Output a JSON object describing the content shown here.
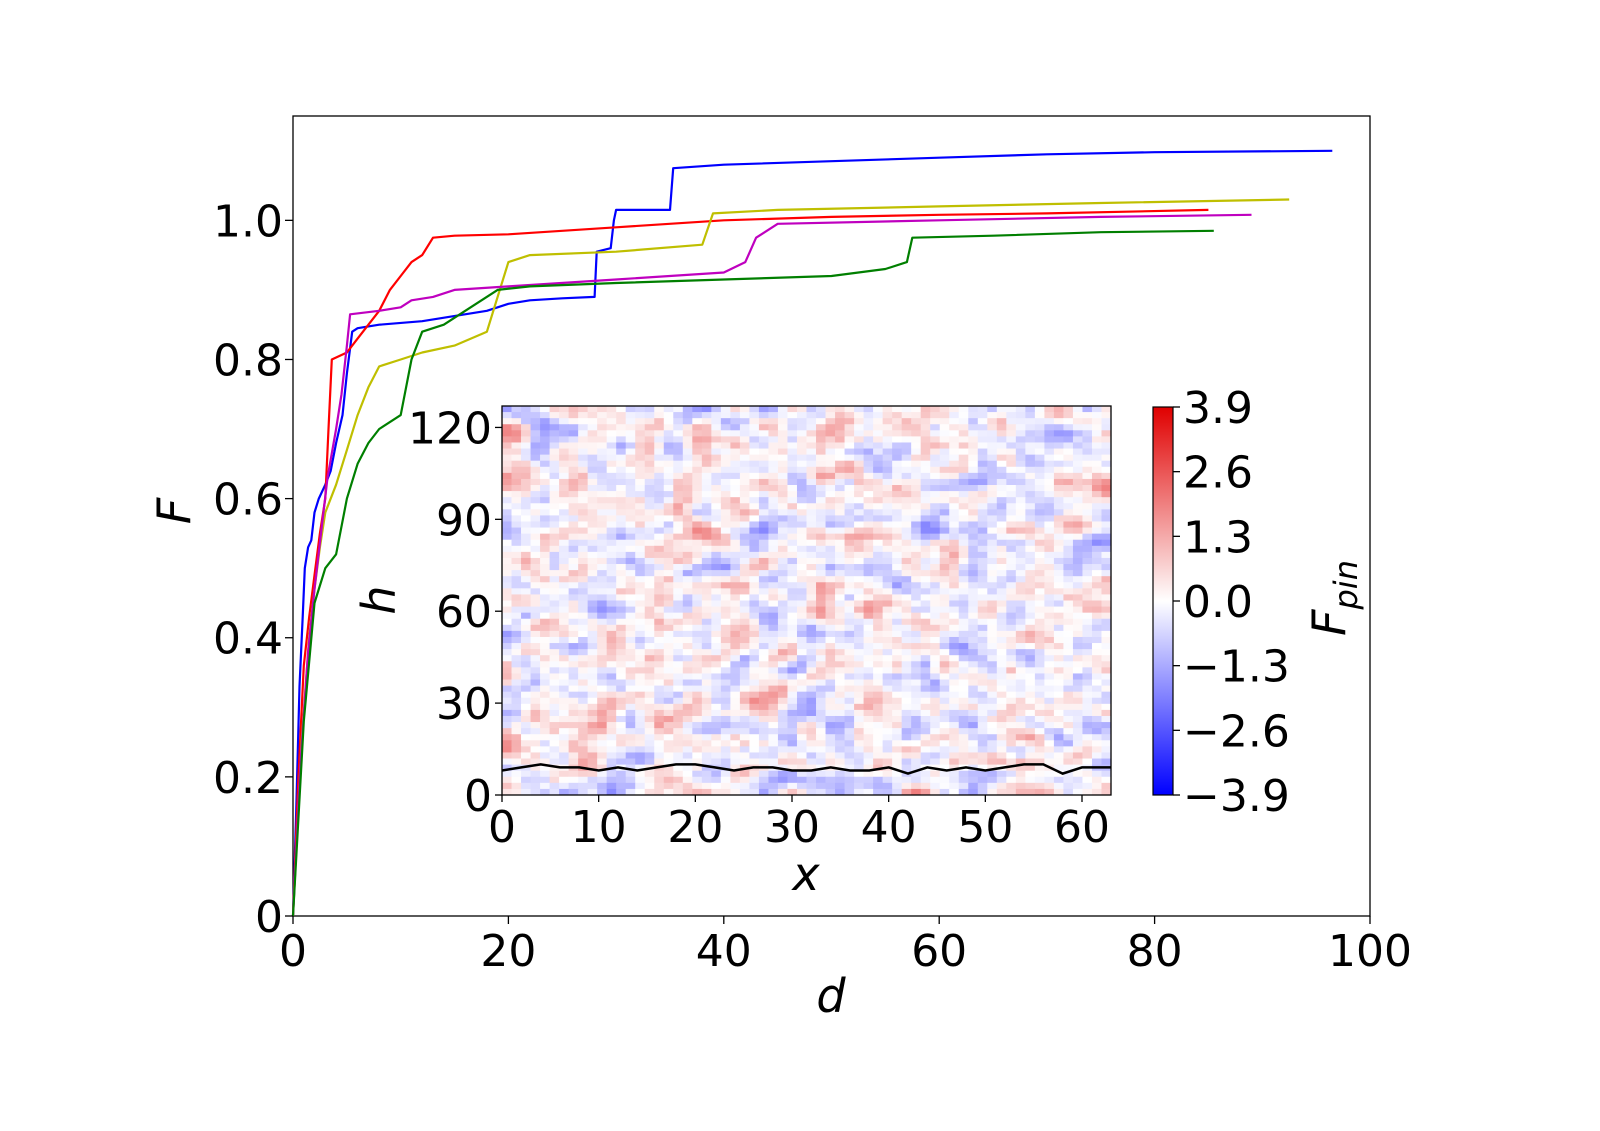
{
  "chart_data": [
    {
      "type": "line",
      "xlabel": "d",
      "ylabel": "F",
      "xlim": [
        0,
        100
      ],
      "ylim": [
        0,
        1.15
      ],
      "x_ticks": [
        "0",
        "20",
        "40",
        "60",
        "80",
        "100"
      ],
      "x_tick_values": [
        0,
        20,
        40,
        60,
        80,
        100
      ],
      "y_ticks": [
        "0",
        "0.2",
        "0.4",
        "0.6",
        "0.8",
        "1.0"
      ],
      "y_tick_values": [
        0,
        0.2,
        0.4,
        0.6,
        0.8,
        1.0
      ],
      "grid": false,
      "series": [
        {
          "color": "#0000ff",
          "points": [
            [
              0,
              0
            ],
            [
              0.3,
              0.15
            ],
            [
              0.6,
              0.33
            ],
            [
              0.9,
              0.43
            ],
            [
              1.1,
              0.5
            ],
            [
              1.4,
              0.53
            ],
            [
              1.7,
              0.54
            ],
            [
              2.0,
              0.58
            ],
            [
              2.4,
              0.6
            ],
            [
              3.0,
              0.62
            ],
            [
              3.5,
              0.64
            ],
            [
              4.0,
              0.68
            ],
            [
              4.6,
              0.72
            ],
            [
              5.0,
              0.78
            ],
            [
              5.5,
              0.84
            ],
            [
              6,
              0.845
            ],
            [
              8,
              0.85
            ],
            [
              12,
              0.855
            ],
            [
              18,
              0.87
            ],
            [
              20,
              0.88
            ],
            [
              22,
              0.885
            ],
            [
              25,
              0.888
            ],
            [
              28,
              0.89
            ],
            [
              28.2,
              0.955
            ],
            [
              29.5,
              0.96
            ],
            [
              29.8,
              1.0
            ],
            [
              30,
              1.015
            ],
            [
              35,
              1.015
            ],
            [
              35.3,
              1.075
            ],
            [
              40,
              1.08
            ],
            [
              50,
              1.085
            ],
            [
              60,
              1.09
            ],
            [
              70,
              1.095
            ],
            [
              80,
              1.098
            ],
            [
              96.5,
              1.1
            ]
          ]
        },
        {
          "color": "#ff0000",
          "points": [
            [
              0,
              0
            ],
            [
              0.5,
              0.2
            ],
            [
              1,
              0.36
            ],
            [
              1.5,
              0.43
            ],
            [
              2,
              0.49
            ],
            [
              2.5,
              0.55
            ],
            [
              3,
              0.6
            ],
            [
              3.3,
              0.7
            ],
            [
              3.6,
              0.8
            ],
            [
              5,
              0.81
            ],
            [
              6,
              0.83
            ],
            [
              7,
              0.85
            ],
            [
              8,
              0.87
            ],
            [
              9,
              0.9
            ],
            [
              10,
              0.92
            ],
            [
              11,
              0.94
            ],
            [
              12,
              0.95
            ],
            [
              13,
              0.975
            ],
            [
              15,
              0.978
            ],
            [
              20,
              0.98
            ],
            [
              30,
              0.99
            ],
            [
              40,
              1.0
            ],
            [
              50,
              1.005
            ],
            [
              60,
              1.008
            ],
            [
              70,
              1.01
            ],
            [
              85,
              1.015
            ]
          ]
        },
        {
          "color": "#bfbf00",
          "points": [
            [
              0,
              0
            ],
            [
              0.8,
              0.25
            ],
            [
              1.5,
              0.4
            ],
            [
              2,
              0.47
            ],
            [
              2.5,
              0.53
            ],
            [
              3,
              0.58
            ],
            [
              4,
              0.62
            ],
            [
              5,
              0.67
            ],
            [
              6,
              0.72
            ],
            [
              7,
              0.76
            ],
            [
              8,
              0.79
            ],
            [
              10,
              0.8
            ],
            [
              12,
              0.81
            ],
            [
              15,
              0.82
            ],
            [
              18,
              0.84
            ],
            [
              19,
              0.89
            ],
            [
              20,
              0.94
            ],
            [
              22,
              0.95
            ],
            [
              30,
              0.955
            ],
            [
              38,
              0.965
            ],
            [
              39,
              1.01
            ],
            [
              45,
              1.015
            ],
            [
              60,
              1.02
            ],
            [
              75,
              1.025
            ],
            [
              92.5,
              1.03
            ]
          ]
        },
        {
          "color": "#bf00bf",
          "points": [
            [
              0,
              0
            ],
            [
              0.7,
              0.22
            ],
            [
              1.4,
              0.38
            ],
            [
              2,
              0.47
            ],
            [
              2.6,
              0.55
            ],
            [
              3.2,
              0.63
            ],
            [
              4,
              0.7
            ],
            [
              4.5,
              0.75
            ],
            [
              5,
              0.82
            ],
            [
              5.3,
              0.865
            ],
            [
              8,
              0.87
            ],
            [
              10,
              0.875
            ],
            [
              11,
              0.885
            ],
            [
              13,
              0.89
            ],
            [
              15,
              0.9
            ],
            [
              20,
              0.905
            ],
            [
              30,
              0.915
            ],
            [
              40,
              0.925
            ],
            [
              42,
              0.94
            ],
            [
              43,
              0.975
            ],
            [
              45,
              0.995
            ],
            [
              60,
              1.0
            ],
            [
              75,
              1.005
            ],
            [
              89,
              1.008
            ]
          ]
        },
        {
          "color": "#007f00",
          "points": [
            [
              0,
              0
            ],
            [
              1,
              0.28
            ],
            [
              2,
              0.45
            ],
            [
              3,
              0.5
            ],
            [
              4,
              0.52
            ],
            [
              5,
              0.6
            ],
            [
              6,
              0.65
            ],
            [
              7,
              0.68
            ],
            [
              8,
              0.7
            ],
            [
              10,
              0.72
            ],
            [
              11,
              0.8
            ],
            [
              12,
              0.84
            ],
            [
              14,
              0.85
            ],
            [
              17,
              0.88
            ],
            [
              19,
              0.9
            ],
            [
              22,
              0.905
            ],
            [
              30,
              0.91
            ],
            [
              40,
              0.915
            ],
            [
              50,
              0.92
            ],
            [
              55,
              0.93
            ],
            [
              57,
              0.94
            ],
            [
              57.5,
              0.975
            ],
            [
              65,
              0.978
            ],
            [
              75,
              0.983
            ],
            [
              85.5,
              0.985
            ]
          ]
        }
      ]
    },
    {
      "type": "heatmap",
      "xlabel": "x",
      "ylabel": "h",
      "xlim": [
        0,
        63
      ],
      "ylim": [
        0,
        127
      ],
      "x_ticks": [
        "0",
        "10",
        "20",
        "30",
        "40",
        "50",
        "60"
      ],
      "x_tick_values": [
        0,
        10,
        20,
        30,
        40,
        50,
        60
      ],
      "y_ticks": [
        "0",
        "30",
        "60",
        "90",
        "120"
      ],
      "y_tick_values": [
        0,
        30,
        60,
        90,
        120
      ],
      "colormap": [
        "#0000ff",
        "#ffffff",
        "#e00000"
      ],
      "colorbar": {
        "label": "F",
        "label_sub": "pin",
        "range": [
          -3.9,
          3.9
        ],
        "ticks": [
          "3.9",
          "2.6",
          "1.3",
          "0.0",
          "−1.3",
          "−2.6",
          "−3.9"
        ],
        "tick_values": [
          3.9,
          2.6,
          1.3,
          0.0,
          -1.3,
          -2.6,
          -3.9
        ]
      },
      "interface": {
        "color": "#000000",
        "x": [
          0,
          2,
          4,
          6,
          8,
          10,
          12,
          14,
          16,
          18,
          20,
          22,
          24,
          26,
          28,
          30,
          32,
          34,
          36,
          38,
          40,
          42,
          44,
          46,
          48,
          50,
          52,
          54,
          56,
          58,
          60,
          62,
          63
        ],
        "h": [
          8,
          9,
          10,
          9,
          9,
          8,
          9,
          8,
          9,
          10,
          10,
          9,
          8,
          9,
          9,
          8,
          8,
          9,
          8,
          8,
          9,
          7,
          9,
          8,
          9,
          8,
          9,
          10,
          10,
          7,
          9,
          9,
          9
        ]
      }
    }
  ]
}
